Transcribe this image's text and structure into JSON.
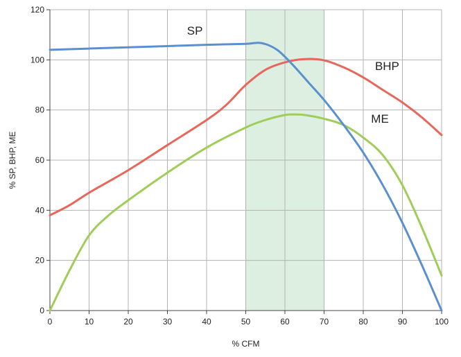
{
  "chart_data": {
    "type": "line",
    "title": "",
    "xlabel": "% CFM",
    "ylabel": "% SP, BHP, ME",
    "xlim": [
      0,
      100
    ],
    "ylim": [
      0,
      120
    ],
    "x_ticks": [
      0,
      10,
      20,
      30,
      40,
      50,
      60,
      70,
      80,
      90,
      100
    ],
    "y_ticks": [
      0,
      20,
      40,
      60,
      80,
      100,
      120
    ],
    "grid": true,
    "legend": "inline labels",
    "highlight_band": {
      "x_start": 50,
      "x_end": 70,
      "color": "#dcefe0"
    },
    "series": [
      {
        "name": "SP",
        "color": "#5b8fd0",
        "x": [
          0,
          10,
          20,
          30,
          40,
          50,
          54,
          58,
          62,
          66,
          70,
          75,
          80,
          85,
          90,
          95,
          100
        ],
        "y": [
          104,
          104.5,
          105,
          105.5,
          106,
          106.4,
          106.7,
          104,
          98,
          91,
          84,
          74,
          63,
          50,
          35,
          18,
          0
        ]
      },
      {
        "name": "BHP",
        "color": "#e8665a",
        "x": [
          0,
          5,
          10,
          20,
          30,
          40,
          45,
          50,
          55,
          60,
          65,
          70,
          75,
          80,
          85,
          90,
          95,
          100
        ],
        "y": [
          38,
          42,
          47,
          56,
          66,
          76,
          82,
          90,
          96,
          99,
          100.3,
          99.8,
          97,
          93,
          88,
          83,
          77,
          70
        ]
      },
      {
        "name": "ME",
        "color": "#9fcd57",
        "x": [
          0,
          5,
          10,
          15,
          20,
          30,
          40,
          50,
          55,
          60,
          62,
          65,
          70,
          75,
          80,
          85,
          90,
          95,
          100
        ],
        "y": [
          0,
          16,
          30,
          38,
          44,
          55,
          65,
          73,
          76,
          78,
          78.2,
          78,
          76.5,
          74,
          69,
          62,
          50,
          33,
          14
        ]
      }
    ],
    "series_labels": [
      {
        "text": "SP",
        "x": 35,
        "y": 110
      },
      {
        "text": "BHP",
        "x": 83,
        "y": 96
      },
      {
        "text": "ME",
        "x": 82,
        "y": 75
      }
    ]
  }
}
